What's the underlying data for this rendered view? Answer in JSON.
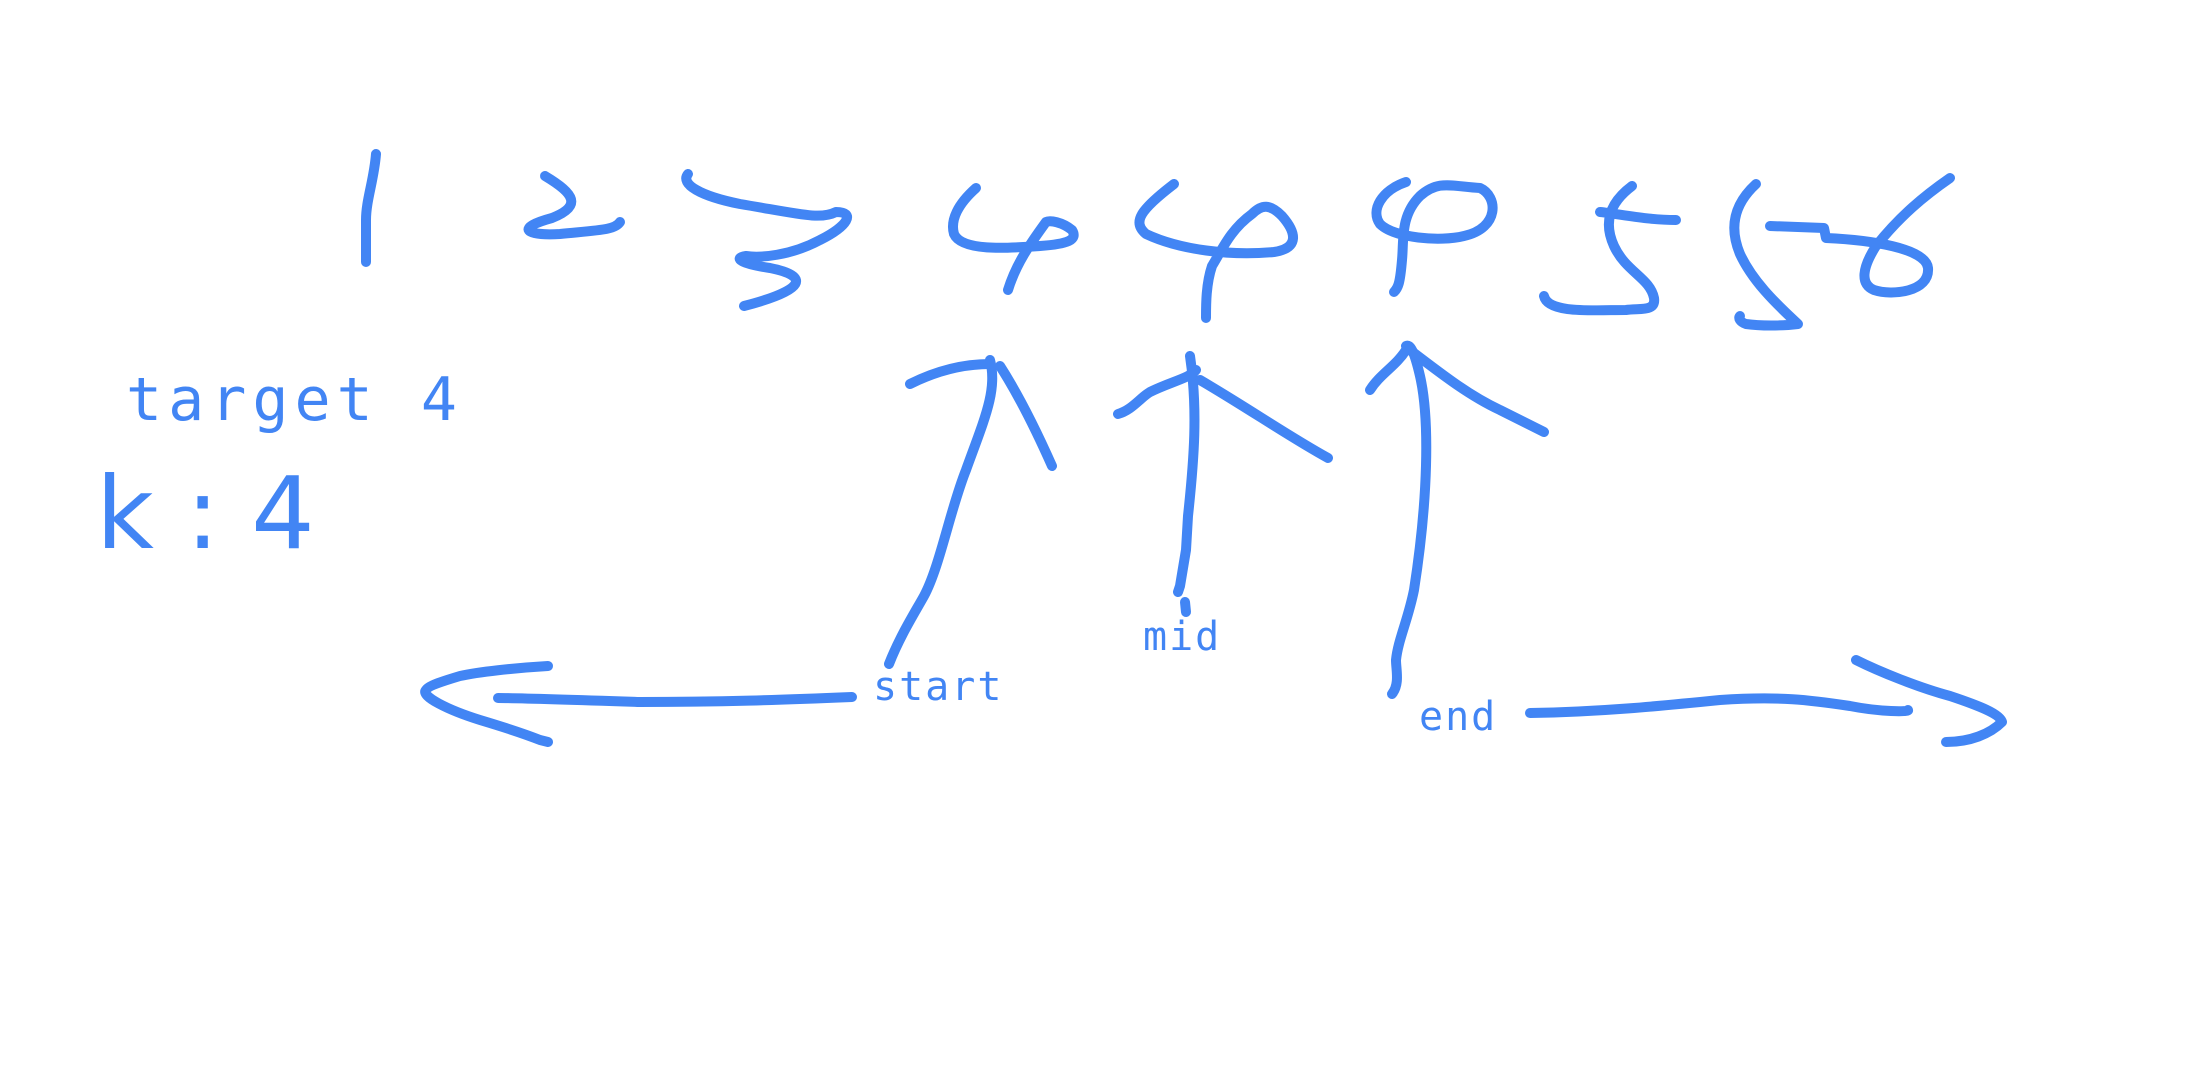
{
  "array": {
    "values": [
      "1",
      "2",
      "3",
      "4",
      "4",
      "4",
      "5",
      "6"
    ]
  },
  "target": {
    "text": "target 4"
  },
  "k": {
    "text": "k : 4"
  },
  "pointers": {
    "start": "start",
    "mid": "mid",
    "end": "end"
  },
  "colors": {
    "ink": "#4285f4",
    "background": "#ffffff"
  }
}
